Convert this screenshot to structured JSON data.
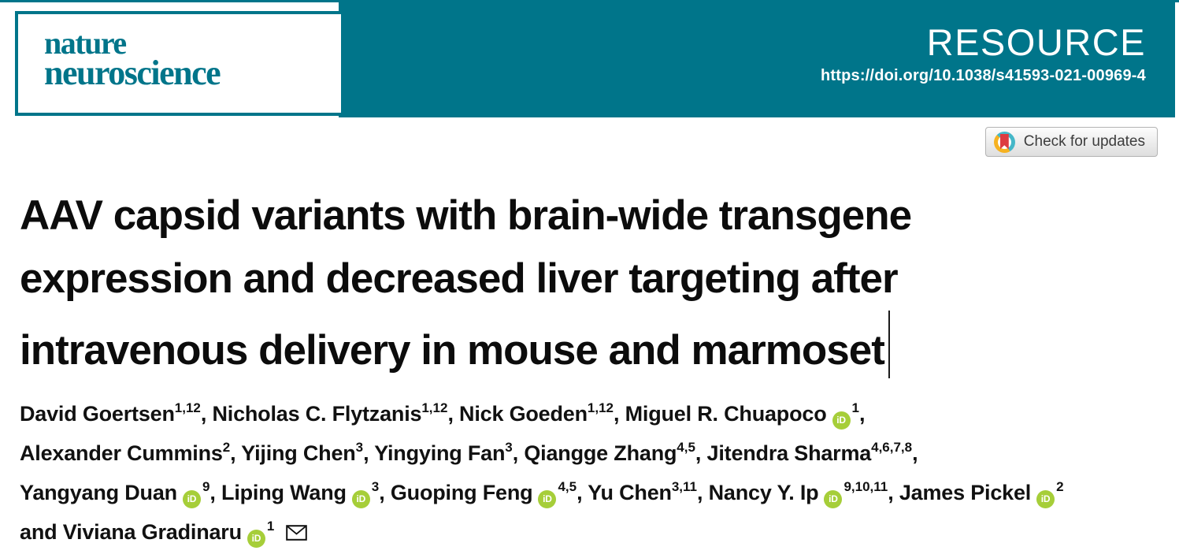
{
  "colors": {
    "teal": "#00758a",
    "orcid_green": "#a6ce39",
    "crossmark_teal": "#45b7c8",
    "crossmark_yellow": "#f6b221",
    "crossmark_red": "#dd3b41",
    "title_text": "#0c0c0c"
  },
  "masthead": {
    "journal_name_line1": "nature",
    "journal_name_line2": "neuroscience",
    "article_type": "RESOURCE",
    "doi": "https://doi.org/10.1038/s41593-021-00969-4"
  },
  "update_badge": {
    "label": "Check for updates"
  },
  "article": {
    "title_lines": [
      "AAV capsid variants with brain-wide transgene",
      "expression and decreased liver targeting after",
      "intravenous delivery in mouse and marmoset"
    ],
    "cursor_visible": true
  },
  "authors": {
    "orcid_label": "iD",
    "lines": [
      [
        {
          "name": "David Goertsen",
          "sup": "1,12",
          "orcid": false,
          "trail": ", "
        },
        {
          "name": "Nicholas C. Flytzanis",
          "sup": "1,12",
          "orcid": false,
          "trail": ", "
        },
        {
          "name": "Nick Goeden",
          "sup": "1,12",
          "orcid": false,
          "trail": ", "
        },
        {
          "name": "Miguel R. Chuapoco",
          "sup": "1",
          "orcid": true,
          "trail": ","
        }
      ],
      [
        {
          "name": "Alexander Cummins",
          "sup": "2",
          "orcid": false,
          "trail": ", "
        },
        {
          "name": "Yijing Chen",
          "sup": "3",
          "orcid": false,
          "trail": ", "
        },
        {
          "name": "Yingying Fan",
          "sup": "3",
          "orcid": false,
          "trail": ", "
        },
        {
          "name": "Qiangge Zhang",
          "sup": "4,5",
          "orcid": false,
          "trail": ", "
        },
        {
          "name": "Jitendra Sharma",
          "sup": "4,6,7,8",
          "orcid": false,
          "trail": ","
        }
      ],
      [
        {
          "name": "Yangyang Duan",
          "sup": "9",
          "orcid": true,
          "trail": ", "
        },
        {
          "name": "Liping Wang",
          "sup": "3",
          "orcid": true,
          "trail": ", "
        },
        {
          "name": "Guoping Feng",
          "sup": "4,5",
          "orcid": true,
          "trail": ", "
        },
        {
          "name": "Yu Chen",
          "sup": "3,11",
          "orcid": false,
          "trail": ", "
        },
        {
          "name": "Nancy Y. Ip",
          "sup": "9,10,11",
          "orcid": true,
          "trail": ", "
        },
        {
          "name": "James Pickel",
          "sup": "2",
          "orcid": true,
          "trail": ""
        }
      ],
      [
        {
          "name": "and Viviana Gradinaru",
          "sup": "1",
          "orcid": true,
          "trail": "",
          "envelope": true
        }
      ]
    ]
  }
}
